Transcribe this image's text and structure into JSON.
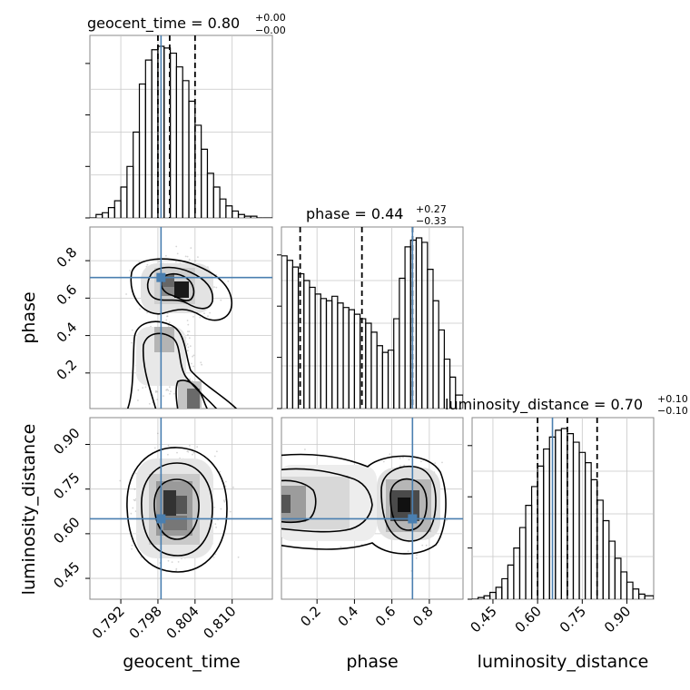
{
  "chart_data": {
    "type": "corner",
    "parameters": [
      "geocent_time",
      "phase",
      "luminosity_distance"
    ],
    "truths": {
      "geocent_time": 0.7985,
      "phase": 0.71,
      "luminosity_distance": 0.65
    },
    "axis_ranges": {
      "geocent_time": [
        0.787,
        0.8165
      ],
      "phase": [
        0.01,
        0.98
      ],
      "luminosity_distance": [
        0.38,
        0.99
      ]
    },
    "ticks": {
      "geocent_time": [
        0.792,
        0.798,
        0.804,
        0.81
      ],
      "phase": [
        0.2,
        0.4,
        0.6,
        0.8
      ],
      "luminosity_distance": [
        0.45,
        0.6,
        0.75,
        0.9
      ]
    },
    "tick_labels": {
      "geocent_time": [
        "0.792",
        "0.798",
        "0.804",
        "0.810"
      ],
      "phase": [
        "0.2",
        "0.4",
        "0.6",
        "0.8"
      ],
      "luminosity_distance": [
        "0.45",
        "0.60",
        "0.75",
        "0.90"
      ]
    },
    "titles": {
      "geocent_time": {
        "label": "geocent_time = 0.80",
        "plus": "+0.00",
        "minus": "−0.00"
      },
      "phase": {
        "label": "phase = 0.44",
        "plus": "+0.27",
        "minus": "−0.33"
      },
      "luminosity_distance": {
        "label": "luminosity_distance = 0.70",
        "plus": "+0.10",
        "minus": "−0.10"
      }
    },
    "quantiles": {
      "geocent_time": [
        0.798,
        0.7999,
        0.804
      ],
      "phase": [
        0.11,
        0.44,
        0.71
      ],
      "luminosity_distance": [
        0.6,
        0.7,
        0.8
      ]
    },
    "histograms": {
      "geocent_time": {
        "edges": [
          0.787,
          0.788,
          0.789,
          0.79,
          0.791,
          0.792,
          0.793,
          0.794,
          0.795,
          0.796,
          0.797,
          0.798,
          0.799,
          0.8,
          0.801,
          0.802,
          0.803,
          0.804,
          0.805,
          0.806,
          0.807,
          0.808,
          0.809,
          0.81,
          0.811,
          0.812,
          0.813,
          0.814,
          0.815,
          0.8165
        ],
        "counts": [
          0,
          2,
          3,
          6,
          10,
          18,
          30,
          50,
          78,
          92,
          98,
          100,
          99,
          96,
          88,
          80,
          68,
          54,
          40,
          26,
          18,
          11,
          7,
          4,
          2,
          1,
          1,
          0,
          0
        ]
      },
      "phase": {
        "edges": [
          0.01,
          0.04,
          0.07,
          0.1,
          0.13,
          0.16,
          0.19,
          0.22,
          0.25,
          0.28,
          0.31,
          0.34,
          0.37,
          0.4,
          0.43,
          0.46,
          0.49,
          0.52,
          0.55,
          0.58,
          0.61,
          0.64,
          0.67,
          0.7,
          0.73,
          0.76,
          0.79,
          0.82,
          0.85,
          0.88,
          0.91,
          0.94,
          0.98
        ],
        "counts": [
          68,
          66,
          63,
          60,
          57,
          54,
          51,
          49,
          48,
          50,
          47,
          45,
          44,
          42,
          40,
          38,
          34,
          28,
          25,
          26,
          40,
          58,
          72,
          75,
          76,
          74,
          62,
          48,
          35,
          22,
          14,
          6
        ]
      },
      "luminosity_distance": {
        "edges": [
          0.38,
          0.4,
          0.42,
          0.44,
          0.46,
          0.48,
          0.5,
          0.52,
          0.54,
          0.56,
          0.58,
          0.6,
          0.62,
          0.64,
          0.66,
          0.68,
          0.7,
          0.72,
          0.74,
          0.76,
          0.78,
          0.8,
          0.82,
          0.84,
          0.86,
          0.88,
          0.9,
          0.92,
          0.94,
          0.96,
          0.99
        ],
        "counts": [
          0,
          1,
          2,
          4,
          7,
          12,
          20,
          30,
          42,
          55,
          66,
          78,
          88,
          95,
          99,
          100,
          97,
          92,
          86,
          80,
          70,
          58,
          46,
          34,
          24,
          16,
          10,
          6,
          3,
          2
        ]
      }
    },
    "grid": true
  }
}
